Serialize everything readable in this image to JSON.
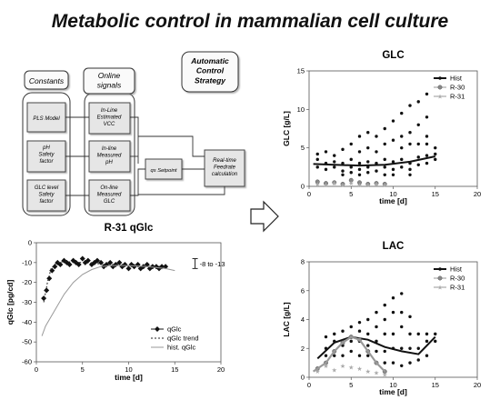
{
  "title": "Metabolic control in mammalian cell culture",
  "flowchart": {
    "constants_header": "Constants",
    "online_header": "Online\nsignals",
    "strategy_header": "Automatic\nControl\nStrategy",
    "constants": [
      "PLS Model",
      "pH\nSafety\nfactor",
      "GLC level\nSafety\nfactor"
    ],
    "signals": [
      "In-Line\nEstimated\nVCC",
      "In-line\nMeasured\npH",
      "On-line\nMeasured\nGLC"
    ],
    "qs_setpoint": "qs Setpoint",
    "feedrate": "Real-time\nFeedrate\ncalculation"
  },
  "chart_data": [
    {
      "id": "glc",
      "type": "scatter",
      "title": "GLC",
      "xlabel": "time [d]",
      "ylabel": "GLC [g/L]",
      "xlim": [
        0,
        20
      ],
      "ylim": [
        0,
        15
      ],
      "xticks": [
        0,
        5,
        10,
        15,
        20
      ],
      "yticks": [
        0,
        5,
        10,
        15
      ],
      "legend": [
        "Hist",
        "R-30",
        "R-31"
      ],
      "legend_position": "top-right",
      "series": [
        {
          "name": "Hist",
          "kind": "scatter",
          "points": [
            [
              1,
              3.5
            ],
            [
              1,
              2.5
            ],
            [
              1,
              4.2
            ],
            [
              2,
              3.0
            ],
            [
              2,
              2.2
            ],
            [
              2,
              4.5
            ],
            [
              3,
              3.2
            ],
            [
              3,
              2.5
            ],
            [
              3,
              4.0
            ],
            [
              4,
              3.0
            ],
            [
              4,
              2.0
            ],
            [
              4,
              4.8
            ],
            [
              4,
              1.5
            ],
            [
              5,
              3.5
            ],
            [
              5,
              2.5
            ],
            [
              5,
              5.5
            ],
            [
              5,
              1.8
            ],
            [
              6,
              3.0
            ],
            [
              6,
              2.2
            ],
            [
              6,
              6.5
            ],
            [
              6,
              4.5
            ],
            [
              6,
              1.5
            ],
            [
              7,
              3.2
            ],
            [
              7,
              2.5
            ],
            [
              7,
              7.0
            ],
            [
              7,
              5.0
            ],
            [
              7,
              1.8
            ],
            [
              8,
              3.0
            ],
            [
              8,
              2.0
            ],
            [
              8,
              6.5
            ],
            [
              8,
              4.5
            ],
            [
              9,
              3.5
            ],
            [
              9,
              2.5
            ],
            [
              9,
              7.5
            ],
            [
              9,
              5.5
            ],
            [
              9,
              1.5
            ],
            [
              10,
              3.2
            ],
            [
              10,
              2.2
            ],
            [
              10,
              8.5
            ],
            [
              10,
              6.0
            ],
            [
              10,
              1.5
            ],
            [
              11,
              3.5
            ],
            [
              11,
              2.5
            ],
            [
              11,
              9.5
            ],
            [
              11,
              6.5
            ],
            [
              11,
              5.0
            ],
            [
              12,
              3.0
            ],
            [
              12,
              2.2
            ],
            [
              12,
              10.5
            ],
            [
              12,
              7.0
            ],
            [
              12,
              5.5
            ],
            [
              12,
              1.5
            ],
            [
              13,
              3.8
            ],
            [
              13,
              2.8
            ],
            [
              13,
              8.0
            ],
            [
              13,
              11.0
            ],
            [
              13,
              5.5
            ],
            [
              14,
              4.0
            ],
            [
              14,
              3.0
            ],
            [
              14,
              12.0
            ],
            [
              14,
              9.0
            ],
            [
              14,
              6.5
            ],
            [
              14,
              5.5
            ],
            [
              15,
              4.2
            ],
            [
              15,
              3.5
            ],
            [
              15,
              5.0
            ]
          ]
        },
        {
          "name": "Hist",
          "kind": "line",
          "points": [
            [
              0.5,
              2.9
            ],
            [
              3,
              2.8
            ],
            [
              6,
              2.7
            ],
            [
              9,
              2.8
            ],
            [
              12,
              3.2
            ],
            [
              15,
              3.9
            ]
          ]
        },
        {
          "name": "R-30",
          "kind": "scatter",
          "points": [
            [
              1,
              0.6
            ],
            [
              2,
              0.4
            ],
            [
              3,
              0.5
            ],
            [
              4,
              0.3
            ],
            [
              5,
              0.8
            ],
            [
              6,
              0.5
            ],
            [
              7,
              0.3
            ],
            [
              8,
              0.4
            ],
            [
              9,
              0.3
            ]
          ]
        },
        {
          "name": "R-31",
          "kind": "scatter",
          "points": [
            [
              1,
              0.3
            ],
            [
              2,
              0.2
            ],
            [
              3,
              0.4
            ],
            [
              4,
              0.2
            ],
            [
              5,
              0.4
            ],
            [
              6,
              0.2
            ],
            [
              7,
              0.2
            ],
            [
              8,
              0.3
            ],
            [
              9,
              0.2
            ]
          ]
        }
      ]
    },
    {
      "id": "lac",
      "type": "scatter",
      "title": "LAC",
      "xlabel": "time [d]",
      "ylabel": "LAC [g/L]",
      "xlim": [
        0,
        20
      ],
      "ylim": [
        0,
        8
      ],
      "xticks": [
        0,
        5,
        10,
        15,
        20
      ],
      "yticks": [
        0,
        2,
        4,
        6,
        8
      ],
      "legend": [
        "Hist",
        "R-30",
        "R-31"
      ],
      "legend_position": "top-right",
      "series": [
        {
          "name": "Hist",
          "kind": "scatter",
          "points": [
            [
              2,
              1.0
            ],
            [
              2,
              1.5
            ],
            [
              2,
              2.0
            ],
            [
              2,
              2.8
            ],
            [
              3,
              1.5
            ],
            [
              3,
              2.5
            ],
            [
              3,
              3.0
            ],
            [
              4,
              1.5
            ],
            [
              4,
              2.2
            ],
            [
              4,
              3.2
            ],
            [
              5,
              1.8
            ],
            [
              5,
              2.5
            ],
            [
              5,
              3.5
            ],
            [
              6,
              1.5
            ],
            [
              6,
              2.5
            ],
            [
              6,
              3.2
            ],
            [
              6,
              3.8
            ],
            [
              7,
              1.5
            ],
            [
              7,
              2.2
            ],
            [
              7,
              3.0
            ],
            [
              7,
              4.0
            ],
            [
              8,
              1.0
            ],
            [
              8,
              1.8
            ],
            [
              8,
              2.5
            ],
            [
              8,
              3.5
            ],
            [
              8,
              4.5
            ],
            [
              9,
              1.0
            ],
            [
              9,
              1.8
            ],
            [
              9,
              3.0
            ],
            [
              9,
              4.0
            ],
            [
              9,
              5.0
            ],
            [
              10,
              1.0
            ],
            [
              10,
              2.0
            ],
            [
              10,
              3.0
            ],
            [
              10,
              4.5
            ],
            [
              10,
              5.5
            ],
            [
              11,
              0.8
            ],
            [
              11,
              2.0
            ],
            [
              11,
              3.5
            ],
            [
              11,
              4.5
            ],
            [
              11,
              5.8
            ],
            [
              12,
              1.0
            ],
            [
              12,
              2.0
            ],
            [
              12,
              3.0
            ],
            [
              12,
              4.2
            ],
            [
              13,
              1.2
            ],
            [
              13,
              2.0
            ],
            [
              13,
              3.0
            ],
            [
              14,
              1.5
            ],
            [
              14,
              2.5
            ],
            [
              14,
              3.0
            ],
            [
              15,
              2.5
            ],
            [
              15,
              3.0
            ]
          ]
        },
        {
          "name": "Hist",
          "kind": "line",
          "points": [
            [
              1,
              1.3
            ],
            [
              3,
              2.4
            ],
            [
              5,
              2.8
            ],
            [
              7,
              2.6
            ],
            [
              9,
              2.1
            ],
            [
              11,
              1.8
            ],
            [
              13,
              1.6
            ],
            [
              15,
              2.8
            ]
          ]
        },
        {
          "name": "R-30",
          "kind": "scatter",
          "points": [
            [
              1,
              0.6
            ],
            [
              2,
              1.0
            ],
            [
              3,
              1.8
            ],
            [
              4,
              2.4
            ],
            [
              5,
              2.8
            ],
            [
              6,
              2.6
            ],
            [
              7,
              1.8
            ],
            [
              8,
              1.0
            ],
            [
              9,
              0.4
            ]
          ]
        },
        {
          "name": "R-30",
          "kind": "line",
          "points": [
            [
              0.5,
              0.4
            ],
            [
              2,
              1.0
            ],
            [
              3,
              1.8
            ],
            [
              4,
              2.4
            ],
            [
              5,
              2.8
            ],
            [
              6,
              2.6
            ],
            [
              7,
              1.8
            ],
            [
              8,
              1.0
            ],
            [
              9,
              0.4
            ]
          ]
        },
        {
          "name": "R-31",
          "kind": "scatter",
          "points": [
            [
              1,
              0.4
            ],
            [
              2,
              0.8
            ],
            [
              3,
              0.5
            ],
            [
              4,
              0.8
            ],
            [
              5,
              0.7
            ],
            [
              6,
              0.6
            ],
            [
              7,
              0.4
            ],
            [
              8,
              0.3
            ],
            [
              9,
              0.2
            ]
          ]
        }
      ]
    },
    {
      "id": "qglc",
      "type": "line",
      "title": "R-31 qGlc",
      "xlabel": "time [d]",
      "ylabel": "qGlc [pg/cd]",
      "xlim": [
        0,
        20
      ],
      "ylim": [
        -60,
        0
      ],
      "xticks": [
        0,
        5,
        10,
        15,
        20
      ],
      "yticks": [
        0,
        -10,
        -20,
        -30,
        -40,
        -50,
        -60
      ],
      "annotation": "-8 to -13",
      "legend": [
        "qGlc",
        "qGlc trend",
        "hist. qGlc"
      ],
      "legend_position": "bottom-right",
      "series": [
        {
          "name": "qGlc",
          "kind": "scatter",
          "points": [
            [
              0.8,
              -28
            ],
            [
              1.1,
              -24
            ],
            [
              1.4,
              -18
            ],
            [
              1.7,
              -14
            ],
            [
              2.0,
              -12
            ],
            [
              2.3,
              -10
            ],
            [
              2.6,
              -11
            ],
            [
              3.0,
              -9
            ],
            [
              3.3,
              -10
            ],
            [
              3.6,
              -11
            ],
            [
              4.0,
              -9
            ],
            [
              4.3,
              -10
            ],
            [
              4.6,
              -11
            ],
            [
              5.0,
              -8
            ],
            [
              5.3,
              -10
            ],
            [
              5.6,
              -9
            ],
            [
              6.0,
              -11
            ],
            [
              6.3,
              -10
            ],
            [
              6.6,
              -9
            ],
            [
              7.0,
              -10
            ],
            [
              7.3,
              -12
            ],
            [
              7.6,
              -11
            ],
            [
              8.0,
              -10
            ],
            [
              8.3,
              -12
            ],
            [
              8.6,
              -11
            ],
            [
              9.0,
              -10
            ],
            [
              9.3,
              -12
            ],
            [
              9.6,
              -11
            ],
            [
              10.0,
              -13
            ],
            [
              10.3,
              -11
            ],
            [
              10.6,
              -12
            ],
            [
              11.0,
              -11
            ],
            [
              11.3,
              -13
            ],
            [
              11.6,
              -12
            ],
            [
              12.0,
              -11
            ],
            [
              12.3,
              -13
            ],
            [
              12.6,
              -12
            ],
            [
              13.0,
              -12
            ],
            [
              13.3,
              -13
            ],
            [
              13.6,
              -12
            ],
            [
              14.0,
              -12
            ]
          ]
        },
        {
          "name": "qGlc trend",
          "kind": "dashed",
          "points": [
            [
              0.8,
              -30
            ],
            [
              1.2,
              -20
            ],
            [
              1.6,
              -13
            ],
            [
              2.2,
              -10
            ],
            [
              3,
              -9.5
            ],
            [
              5,
              -10
            ],
            [
              8,
              -11
            ],
            [
              11,
              -12
            ],
            [
              14,
              -12
            ]
          ]
        },
        {
          "name": "hist. qGlc",
          "kind": "line",
          "points": [
            [
              0.6,
              -47
            ],
            [
              1,
              -42
            ],
            [
              2,
              -34
            ],
            [
              3,
              -26
            ],
            [
              4,
              -20
            ],
            [
              5,
              -16
            ],
            [
              6,
              -13.5
            ],
            [
              7,
              -12
            ],
            [
              8,
              -11.5
            ],
            [
              10,
              -11.5
            ],
            [
              12,
              -12
            ],
            [
              14,
              -13
            ],
            [
              15,
              -14
            ]
          ]
        }
      ]
    }
  ]
}
